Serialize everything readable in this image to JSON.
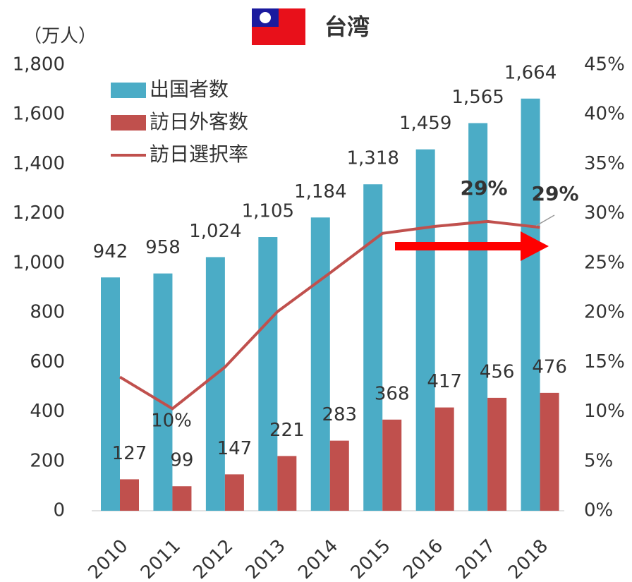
{
  "chart_data": {
    "type": "bar_line",
    "title": "台湾",
    "y_axis_label": "（万人）",
    "categories": [
      "2010",
      "2011",
      "2012",
      "2013",
      "2014",
      "2015",
      "2016",
      "2017",
      "2018"
    ],
    "series": [
      {
        "name": "出国者数",
        "color": "#4bacc6",
        "values": [
          942,
          958,
          1024,
          1105,
          1184,
          1318,
          1459,
          1565,
          1664
        ],
        "value_labels": [
          "942",
          "958",
          "1,024",
          "1,105",
          "1,184",
          "1,318",
          "1,459",
          "1,565",
          "1,664"
        ]
      },
      {
        "name": "訪日外客数",
        "color": "#c0504d",
        "values": [
          127,
          99,
          147,
          221,
          283,
          368,
          417,
          456,
          476
        ]
      },
      {
        "name": "訪日選択率",
        "color": "#c0504d",
        "axis": "y2",
        "values": [
          13.5,
          10.3,
          14.5,
          20.1,
          24.0,
          28.0,
          28.7,
          29.2,
          28.6
        ],
        "value_labels": [
          null,
          "10%",
          null,
          null,
          null,
          null,
          null,
          "29%",
          "29%"
        ]
      }
    ],
    "ylim": [
      0,
      1800
    ],
    "yticks": [
      0,
      200,
      400,
      600,
      800,
      {
        "value": 1000,
        "label": "1,000"
      },
      {
        "value": 1200,
        "label": "1,200"
      },
      {
        "value": 1400,
        "label": "1,400"
      },
      {
        "value": 1600,
        "label": "1,600"
      },
      {
        "value": 1800,
        "label": "1,800"
      }
    ],
    "y2lim": [
      0,
      45
    ],
    "y2ticks": [
      {
        "value": 0,
        "label": "0%"
      },
      {
        "value": 5,
        "label": "5%"
      },
      {
        "value": 10,
        "label": "10%"
      },
      {
        "value": 15,
        "label": "15%"
      },
      {
        "value": 20,
        "label": "20%"
      },
      {
        "value": 25,
        "label": "25%"
      },
      {
        "value": 30,
        "label": "30%"
      },
      {
        "value": 35,
        "label": "35%"
      },
      {
        "value": 40,
        "label": "40%"
      },
      {
        "value": 45,
        "label": "45%"
      }
    ],
    "legend": "upper left",
    "grid": false
  }
}
